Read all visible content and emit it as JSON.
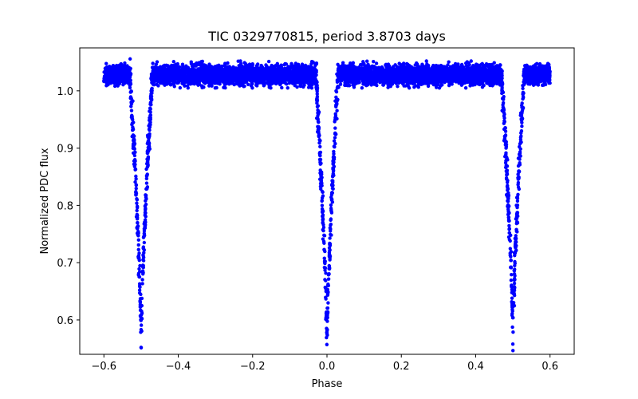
{
  "chart_data": {
    "type": "scatter",
    "title": "TIC 0329770815, period 3.8703 days",
    "xlabel": "Phase",
    "ylabel": "Normalized PDC flux",
    "xlim": [
      -0.665,
      0.665
    ],
    "ylim": [
      0.54,
      1.075
    ],
    "xticks": [
      -0.6,
      -0.4,
      -0.2,
      0.0,
      0.2,
      0.4,
      0.6
    ],
    "xtick_labels": [
      "−0.6",
      "−0.4",
      "−0.2",
      "0.0",
      "0.2",
      "0.4",
      "0.6"
    ],
    "yticks": [
      0.6,
      0.7,
      0.8,
      0.9,
      1.0
    ],
    "ytick_labels": [
      "0.6",
      "0.7",
      "0.8",
      "0.9",
      "1.0"
    ],
    "grid": false,
    "marker_color": "#0000ff",
    "series": [
      {
        "name": "light curve",
        "phase_range": [
          -0.6,
          0.6
        ],
        "baseline_flux": 1.028,
        "baseline_scatter": 0.014,
        "eclipses": [
          {
            "center": -0.5,
            "min_flux": 0.57,
            "half_width": 0.03
          },
          {
            "center": 0.0,
            "min_flux": 0.56,
            "half_width": 0.03
          },
          {
            "center": 0.5,
            "min_flux": 0.57,
            "half_width": 0.03
          }
        ]
      }
    ]
  }
}
